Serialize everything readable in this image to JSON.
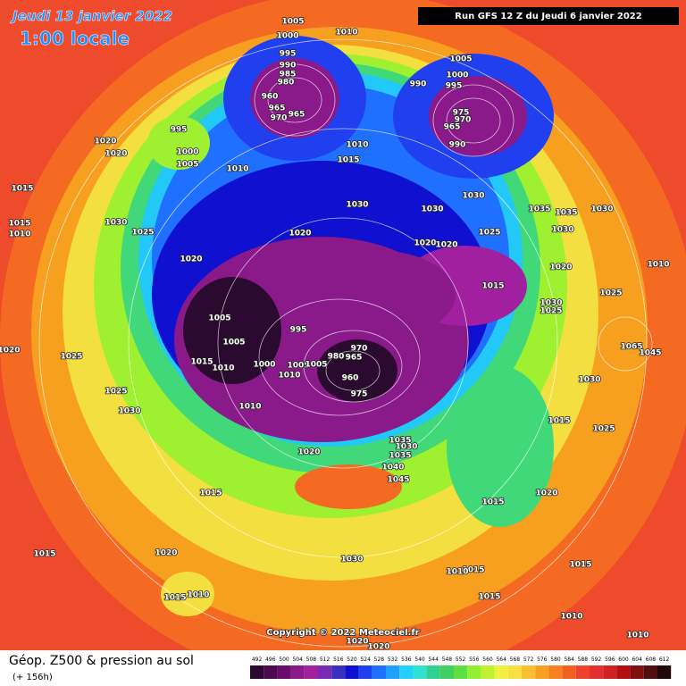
{
  "header": {
    "date": "Jeudi 13 janvier 2022",
    "time": "1:00 locale",
    "run": "Run GFS 12 Z du Jeudi 6 janvier 2022"
  },
  "footer": {
    "title": "Géop. Z500 & pression au sol",
    "lead": "(+ 156h)",
    "copyright": "Copyright © 2022 Meteociel.fr"
  },
  "colorbar": {
    "ticks": [
      492,
      496,
      500,
      504,
      508,
      512,
      516,
      520,
      524,
      528,
      532,
      536,
      540,
      544,
      548,
      552,
      556,
      560,
      564,
      568,
      572,
      576,
      580,
      584,
      588,
      592,
      596,
      600,
      604,
      608,
      612
    ],
    "colors": [
      "#2a0a2e",
      "#4b0a4b",
      "#6a0a6a",
      "#8a1a8a",
      "#a020a0",
      "#7a2ab0",
      "#3a30c0",
      "#1010d0",
      "#2040f0",
      "#2070ff",
      "#20a0ff",
      "#20d0ff",
      "#30e0d0",
      "#30d090",
      "#40d060",
      "#60e040",
      "#90f030",
      "#c0f030",
      "#f0f040",
      "#f8e040",
      "#f8c030",
      "#f8a020",
      "#f88020",
      "#f06020",
      "#f04030",
      "#e03030",
      "#d02020",
      "#b01010",
      "#801010",
      "#501010",
      "#200808"
    ]
  },
  "pressure_labels": [
    "1005",
    "1000",
    "1010",
    "995",
    "990",
    "985",
    "980",
    "960",
    "965",
    "970",
    "965",
    "995",
    "1020",
    "1020",
    "1000",
    "1005",
    "1010",
    "1010",
    "1015",
    "1005",
    "1000",
    "995",
    "990",
    "975",
    "970",
    "965",
    "990",
    "1015",
    "1015",
    "1010",
    "1030",
    "1025",
    "1030",
    "1030",
    "1030",
    "1035",
    "1035",
    "1030",
    "1030",
    "1020",
    "1020",
    "1020",
    "1025",
    "1020",
    "1020",
    "1010",
    "1015",
    "1025",
    "1030",
    "1025",
    "1005",
    "995",
    "1005",
    "970",
    "965",
    "980",
    "1015",
    "1010",
    "1000",
    "1005",
    "1005",
    "1010",
    "960",
    "975",
    "1025",
    "1025",
    "1030",
    "1010",
    "1030",
    "1065",
    "1045",
    "1015",
    "1025",
    "1020",
    "1035",
    "1030",
    "1035",
    "1040",
    "1045",
    "1015",
    "1020",
    "1015",
    "1015",
    "1020",
    "1030",
    "1015",
    "1010",
    "1015",
    "1015",
    "1010",
    "1015",
    "1010",
    "1020",
    "1020",
    "1010",
    "1020"
  ]
}
